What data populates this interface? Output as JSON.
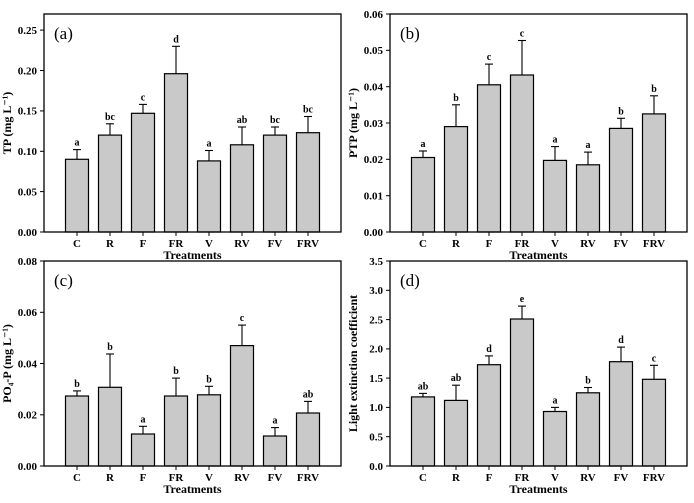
{
  "figure": {
    "background": "#ffffff",
    "frame_color": "#000000",
    "bar_fill": "#c9c9c9",
    "bar_stroke": "#000000",
    "error_bar_color": "#000000",
    "xlabel": "Treatments",
    "categories": [
      "C",
      "R",
      "F",
      "FR",
      "V",
      "RV",
      "FV",
      "FRV"
    ]
  },
  "chart_data": [
    {
      "type": "bar",
      "panel_label": "(a)",
      "xlabel": "Treatments",
      "ylabel": "TP (mg L⁻¹)",
      "categories": [
        "C",
        "R",
        "F",
        "FR",
        "V",
        "RV",
        "FV",
        "FRV"
      ],
      "values": [
        0.09,
        0.12,
        0.147,
        0.196,
        0.088,
        0.108,
        0.12,
        0.123
      ],
      "errors": [
        0.012,
        0.014,
        0.011,
        0.034,
        0.013,
        0.022,
        0.01,
        0.02
      ],
      "sig_letters": [
        "a",
        "bc",
        "c",
        "d",
        "a",
        "ab",
        "bc",
        "bc"
      ],
      "ylim": [
        0,
        0.27
      ],
      "yticks": [
        0.0,
        0.05,
        0.1,
        0.15,
        0.2,
        0.25
      ],
      "ytick_labels": [
        "0.00",
        "0.05",
        "0.10",
        "0.15",
        "0.20",
        "0.25"
      ],
      "grid": false,
      "legend": null
    },
    {
      "type": "bar",
      "panel_label": "(b)",
      "xlabel": "Treatments",
      "ylabel": "PTP (mg L⁻¹)",
      "categories": [
        "C",
        "R",
        "F",
        "FR",
        "V",
        "RV",
        "FV",
        "FRV"
      ],
      "values": [
        0.0205,
        0.029,
        0.0405,
        0.0432,
        0.0197,
        0.0185,
        0.0285,
        0.0325
      ],
      "errors": [
        0.0018,
        0.006,
        0.0057,
        0.0095,
        0.0038,
        0.0035,
        0.0028,
        0.005
      ],
      "sig_letters": [
        "a",
        "b",
        "c",
        "c",
        "a",
        "a",
        "b",
        "b"
      ],
      "ylim": [
        0,
        0.06
      ],
      "yticks": [
        0.0,
        0.01,
        0.02,
        0.03,
        0.04,
        0.05,
        0.06
      ],
      "ytick_labels": [
        "0.00",
        "0.01",
        "0.02",
        "0.03",
        "0.04",
        "0.05",
        "0.06"
      ],
      "grid": false,
      "legend": null
    },
    {
      "type": "bar",
      "panel_label": "(c)",
      "xlabel": "Treatments",
      "ylabel": "PO₄-P (mg L⁻¹)",
      "categories": [
        "C",
        "R",
        "F",
        "FR",
        "V",
        "RV",
        "FV",
        "FRV"
      ],
      "values": [
        0.0273,
        0.0307,
        0.0125,
        0.0273,
        0.0278,
        0.047,
        0.0117,
        0.0207
      ],
      "errors": [
        0.002,
        0.013,
        0.003,
        0.007,
        0.0033,
        0.008,
        0.0033,
        0.0045
      ],
      "sig_letters": [
        "b",
        "b",
        "a",
        "b",
        "b",
        "c",
        "a",
        "ab"
      ],
      "ylim": [
        0,
        0.08
      ],
      "yticks": [
        0.0,
        0.02,
        0.04,
        0.06,
        0.08
      ],
      "ytick_labels": [
        "0.00",
        "0.02",
        "0.04",
        "0.06",
        "0.08"
      ],
      "grid": false,
      "legend": null
    },
    {
      "type": "bar",
      "panel_label": "(d)",
      "xlabel": "Treatments",
      "ylabel": "Light extinction coefficient",
      "categories": [
        "C",
        "R",
        "F",
        "FR",
        "V",
        "RV",
        "FV",
        "FRV"
      ],
      "values": [
        1.18,
        1.12,
        1.73,
        2.51,
        0.93,
        1.25,
        1.78,
        1.48
      ],
      "errors": [
        0.06,
        0.26,
        0.15,
        0.22,
        0.07,
        0.09,
        0.25,
        0.24
      ],
      "sig_letters": [
        "ab",
        "ab",
        "d",
        "e",
        "a",
        "b",
        "d",
        "c"
      ],
      "ylim": [
        0,
        3.5
      ],
      "yticks": [
        0.0,
        0.5,
        1.0,
        1.5,
        2.0,
        2.5,
        3.0,
        3.5
      ],
      "ytick_labels": [
        "0.0",
        "0.5",
        "1.0",
        "1.5",
        "2.0",
        "2.5",
        "3.0",
        "3.5"
      ],
      "grid": false,
      "legend": null
    }
  ]
}
